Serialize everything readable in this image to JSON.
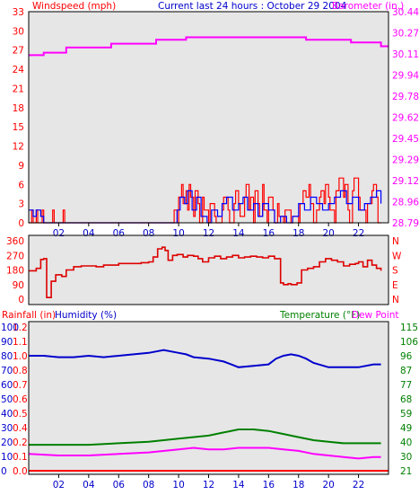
{
  "header": {
    "left_title": "Windspeed (mph)",
    "center_title": "Current last 24 hours : October 29 2004",
    "right_title": "Barometer (in.)"
  },
  "colors": {
    "background": "#e6e6e6",
    "wind_color": "#ff0000",
    "gust_color": "#0000ff",
    "baro_color": "#ff00ff",
    "dir_color": "#dd0000",
    "humidity_color": "#0000cc",
    "temperature_color": "#008000",
    "dewpoint_color": "#ff00ff",
    "rain_color": "#ff0000",
    "tick_label_color": "#0000cc"
  },
  "chart_data": [
    {
      "type": "line",
      "panel": "wind-barometer",
      "xlim": [
        0,
        24
      ],
      "xticks": [
        "02",
        "04",
        "06",
        "08",
        "10",
        "12",
        "14",
        "16",
        "18",
        "20",
        "22"
      ],
      "xtick_values": [
        2,
        4,
        6,
        8,
        10,
        12,
        14,
        16,
        18,
        20,
        22
      ],
      "left_axis": {
        "label": "Windspeed (mph)",
        "ylim": [
          0,
          33
        ],
        "ticks": [
          "0",
          "3",
          "6",
          "9",
          "12",
          "15",
          "18",
          "21",
          "24",
          "27",
          "30",
          "33"
        ]
      },
      "right_axis": {
        "label": "Barometer (in.)",
        "ylim": [
          28.79,
          30.44
        ],
        "ticks": [
          "28.79",
          "28.96",
          "29.12",
          "29.29",
          "29.45",
          "29.62",
          "29.78",
          "29.94",
          "30.11",
          "30.27",
          "30.44"
        ]
      },
      "series": [
        {
          "name": "Windspeed",
          "axis": "left",
          "step": true,
          "x": [
            0,
            0.2,
            0.3,
            0.5,
            0.6,
            0.9,
            1.0,
            1.6,
            1.7,
            2.3,
            2.4,
            9.6,
            9.7,
            9.9,
            10.0,
            10.2,
            10.3,
            10.5,
            10.6,
            10.7,
            10.8,
            11.0,
            11.1,
            11.3,
            11.4,
            11.6,
            11.7,
            12.0,
            12.1,
            12.4,
            12.5,
            12.9,
            13.0,
            13.3,
            13.4,
            13.7,
            13.8,
            14.0,
            14.1,
            14.4,
            14.5,
            14.7,
            14.8,
            15.0,
            15.1,
            15.3,
            15.4,
            15.6,
            15.7,
            15.9,
            16.0,
            16.3,
            16.4,
            16.6,
            16.7,
            17.0,
            17.1,
            17.5,
            17.6,
            18.0,
            18.1,
            18.3,
            18.5,
            18.7,
            18.8,
            19.0,
            19.2,
            19.4,
            19.5,
            19.7,
            19.8,
            20.0,
            20.1,
            20.4,
            20.5,
            20.7,
            20.8,
            21.0,
            21.1,
            21.3,
            21.4,
            21.6,
            21.7,
            22.0,
            22.1,
            22.5,
            22.6,
            22.9,
            23.0,
            23.2,
            23.3,
            23.5
          ],
          "y": [
            0,
            2,
            0,
            2,
            0,
            2,
            0,
            2,
            0,
            2,
            0,
            0,
            2,
            0,
            4,
            6,
            3,
            5,
            2,
            6,
            4,
            1,
            5,
            3,
            0,
            4,
            2,
            0,
            3,
            1,
            0,
            2,
            4,
            2,
            0,
            3,
            5,
            3,
            1,
            4,
            6,
            2,
            4,
            0,
            5,
            3,
            1,
            6,
            2,
            0,
            4,
            2,
            0,
            3,
            1,
            0,
            2,
            0,
            1,
            0,
            3,
            5,
            4,
            6,
            3,
            0,
            2,
            4,
            5,
            3,
            6,
            4,
            2,
            0,
            5,
            7,
            7,
            4,
            6,
            2,
            0,
            5,
            7,
            4,
            2,
            0,
            3,
            5,
            6,
            4,
            0,
            0
          ]
        },
        {
          "name": "Gust",
          "axis": "left",
          "step": true,
          "x": [
            0,
            0.3,
            0.5,
            0.8,
            1.0,
            9.9,
            10.1,
            10.4,
            10.6,
            10.9,
            11.2,
            11.5,
            11.9,
            12.2,
            12.6,
            12.9,
            13.2,
            13.6,
            14.0,
            14.3,
            14.6,
            15.0,
            15.3,
            15.6,
            16.0,
            16.4,
            16.8,
            17.2,
            17.6,
            18.0,
            18.4,
            18.8,
            19.2,
            19.6,
            20.0,
            20.4,
            20.8,
            21.2,
            21.6,
            22.0,
            22.4,
            22.8,
            23.2,
            23.5
          ],
          "y": [
            2,
            1,
            2,
            1,
            0,
            2,
            4,
            3,
            5,
            2,
            4,
            1,
            0,
            2,
            1,
            3,
            4,
            2,
            3,
            4,
            2,
            3,
            1,
            3,
            2,
            0,
            1,
            0,
            1,
            3,
            2,
            4,
            3,
            2,
            3,
            4,
            5,
            3,
            4,
            2,
            3,
            4,
            5,
            3
          ]
        },
        {
          "name": "Barometer",
          "axis": "right",
          "step": true,
          "x": [
            0,
            1.0,
            2.5,
            5.5,
            8.5,
            10.5,
            18.5,
            21.5,
            23.5,
            24
          ],
          "y": [
            30.1,
            30.12,
            30.16,
            30.19,
            30.22,
            30.24,
            30.22,
            30.2,
            30.17,
            30.17
          ]
        }
      ]
    },
    {
      "type": "line",
      "panel": "wind-direction",
      "xlim": [
        0,
        24
      ],
      "left_axis": {
        "ylim": [
          0,
          360
        ],
        "ticks": [
          "0",
          "90",
          "180",
          "270",
          "360"
        ]
      },
      "right_axis": {
        "ticks": [
          "N",
          "E",
          "S",
          "W",
          "N"
        ]
      },
      "series": [
        {
          "name": "Wind Direction",
          "step": true,
          "x": [
            0,
            0.5,
            0.8,
            1.0,
            1.2,
            1.5,
            1.8,
            2.2,
            2.5,
            3.0,
            3.5,
            4.0,
            4.5,
            5.0,
            5.5,
            6.0,
            6.5,
            7.0,
            7.5,
            8.0,
            8.3,
            8.6,
            8.9,
            9.1,
            9.3,
            9.6,
            9.9,
            10.3,
            10.6,
            11.0,
            11.3,
            11.6,
            12.0,
            12.4,
            12.8,
            13.2,
            13.6,
            14.0,
            14.4,
            14.8,
            15.2,
            15.6,
            16.0,
            16.4,
            16.8,
            17.0,
            17.3,
            17.5,
            17.9,
            18.2,
            18.6,
            19.0,
            19.4,
            19.8,
            20.2,
            20.6,
            21.0,
            21.4,
            21.8,
            22.0,
            22.3,
            22.6,
            22.9,
            23.2,
            23.5
          ],
          "y": [
            175,
            190,
            245,
            250,
            10,
            110,
            150,
            140,
            180,
            200,
            205,
            205,
            200,
            210,
            210,
            220,
            220,
            220,
            225,
            230,
            260,
            310,
            320,
            300,
            240,
            270,
            275,
            260,
            270,
            265,
            250,
            230,
            255,
            265,
            250,
            260,
            270,
            255,
            260,
            265,
            260,
            255,
            265,
            250,
            100,
            90,
            95,
            90,
            100,
            180,
            190,
            200,
            230,
            250,
            240,
            230,
            205,
            215,
            220,
            230,
            200,
            240,
            210,
            190,
            175
          ]
        }
      ]
    },
    {
      "type": "line",
      "panel": "temp-humidity-rain",
      "xlim": [
        0,
        24
      ],
      "xticks": [
        "02",
        "04",
        "06",
        "08",
        "10",
        "12",
        "14",
        "16",
        "18",
        "20",
        "22"
      ],
      "xtick_values": [
        2,
        4,
        6,
        8,
        10,
        12,
        14,
        16,
        18,
        20,
        22
      ],
      "header_labels": {
        "rainfall": "Rainfall (in)",
        "humidity": "Humidity (%)",
        "temperature": "Temperature (°F)",
        "dewpoint": "Dew Point"
      },
      "humidity_axis": {
        "ylim": [
          0,
          100
        ],
        "ticks": [
          "0",
          "10",
          "20",
          "30",
          "40",
          "50",
          "60",
          "70",
          "80",
          "90",
          "100"
        ]
      },
      "rain_axis": {
        "ylim": [
          0,
          1.2
        ],
        "ticks": [
          "0.0",
          "0.1",
          "0.2",
          "0.4",
          "0.5",
          "0.6",
          "0.7",
          "0.8",
          "1.0",
          "1.1",
          "1.2"
        ]
      },
      "temp_axis": {
        "ylim": [
          21,
          115
        ],
        "ticks": [
          "21",
          "30",
          "40",
          "49",
          "59",
          "68",
          "77",
          "87",
          "96",
          "106",
          "115"
        ]
      },
      "series": [
        {
          "name": "Humidity",
          "axis": "humidity",
          "x": [
            0,
            1,
            2,
            3,
            4,
            5,
            6,
            7,
            8,
            9,
            10,
            10.5,
            11,
            12,
            13,
            13.5,
            14,
            15,
            16,
            16.5,
            17,
            17.5,
            18,
            18.5,
            19,
            20,
            21,
            22,
            23,
            23.5
          ],
          "y": [
            80,
            80,
            79,
            79,
            80,
            79,
            80,
            81,
            82,
            84,
            82,
            81,
            79,
            78,
            76,
            74,
            72,
            73,
            74,
            78,
            80,
            81,
            80,
            78,
            75,
            72,
            72,
            72,
            74,
            74
          ]
        },
        {
          "name": "Temperature",
          "axis": "temp",
          "x": [
            0,
            2,
            4,
            6,
            8,
            10,
            12,
            13,
            14,
            15,
            16,
            17,
            18,
            19,
            20,
            21,
            22,
            23,
            23.5
          ],
          "y": [
            38,
            38,
            38,
            39,
            40,
            42,
            44,
            46,
            48,
            48,
            47,
            45,
            43,
            41,
            40,
            39,
            39,
            39,
            39
          ]
        },
        {
          "name": "Dew Point",
          "axis": "temp",
          "x": [
            0,
            2,
            4,
            6,
            8,
            10,
            11,
            12,
            13,
            14,
            15,
            16,
            17,
            18,
            19,
            20,
            21,
            22,
            23,
            23.5
          ],
          "y": [
            32,
            31,
            31,
            32,
            33,
            35,
            36,
            35,
            35,
            36,
            36,
            36,
            35,
            34,
            32,
            31,
            30,
            29,
            30,
            30
          ]
        },
        {
          "name": "Rainfall",
          "axis": "rain",
          "x": [
            0,
            24
          ],
          "y": [
            0,
            0
          ]
        }
      ]
    }
  ]
}
